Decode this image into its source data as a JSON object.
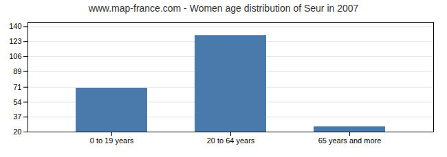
{
  "chart_data": {
    "type": "bar",
    "title": "www.map-france.com - Women age distribution of Seur in 2007",
    "categories": [
      "0 to 19 years",
      "20 to 64 years",
      "65 years and more"
    ],
    "values": [
      70,
      130,
      26
    ],
    "color": "#4a7aab",
    "ylim": [
      20,
      145
    ],
    "yticks": [
      20,
      37,
      54,
      71,
      89,
      106,
      123,
      140
    ],
    "grid": true
  }
}
